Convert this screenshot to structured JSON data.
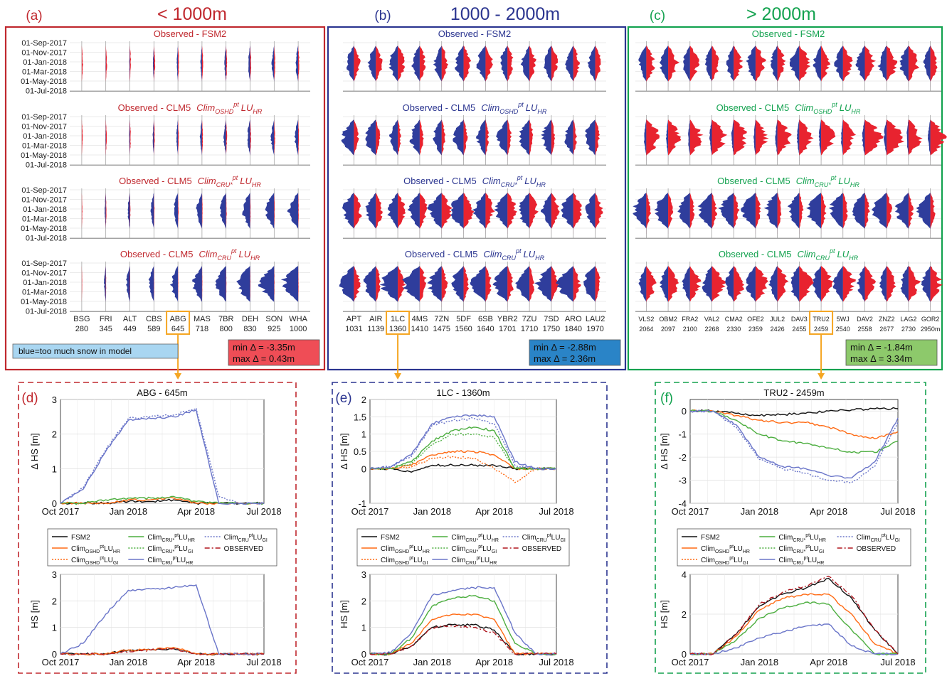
{
  "palette": {
    "red": "#e8232f",
    "blue": "#2f3d9c",
    "green": "#1ea64a",
    "orange": "#f5a623",
    "dark_red": "#c0282e",
    "navy": "#2b3590",
    "sea_green": "#13a24f",
    "fsm2": "#111111",
    "clm_osh": "#ff6a13",
    "clm_crustar": "#4cae3f",
    "clm_cru": "#6a75c9",
    "observed": "#b0171f"
  },
  "panels": [
    {
      "label": "(a)",
      "heading": "< 1000m",
      "subtitles": [
        "Observed - FSM2",
        "Observed - CLM5",
        "Observed - CLM5",
        "Observed - CLM5"
      ],
      "subtitle_clim": [
        "",
        "Clim",
        "Clim",
        "Clim"
      ],
      "subtitle_sub": [
        "",
        "OSHD",
        "CRU*",
        "CRU"
      ],
      "subtitle_sup": [
        "",
        "pt",
        "pt",
        "pt"
      ],
      "subtitle_lu": [
        "",
        "LU",
        "LU",
        "LU"
      ],
      "subtitle_lu_sub": [
        "",
        "HR",
        "HR",
        "HR"
      ],
      "date_ticks": [
        "01-Sep-2017",
        "01-Nov-2017",
        "01-Jan-2018",
        "01-Mar-2018",
        "01-May-2018",
        "01-Jul-2018"
      ],
      "stations": [
        "BSG",
        "FRI",
        "ALT",
        "CBS",
        "ABG",
        "MAS",
        "7BR",
        "DEH",
        "SON",
        "WHA"
      ],
      "elevations": [
        "280",
        "345",
        "449",
        "589",
        "645",
        "718",
        "800",
        "830",
        "925",
        "1000"
      ],
      "highlight_index": 4,
      "note": "blue=too much snow in model",
      "min_label": "min Δ = -3.35m",
      "max_label": "max Δ = 0.43m"
    },
    {
      "label": "(b)",
      "heading": "1000 - 2000m",
      "subtitles": [
        "Observed - FSM2",
        "Observed - CLM5",
        "Observed - CLM5",
        "Observed - CLM5"
      ],
      "subtitle_clim": [
        "",
        "Clim",
        "Clim",
        "Clim"
      ],
      "subtitle_sub": [
        "",
        "OSHD",
        "CRU*",
        "CRU"
      ],
      "subtitle_sup": [
        "",
        "pt",
        "pt",
        "pt"
      ],
      "subtitle_lu": [
        "",
        "LU",
        "LU",
        "LU"
      ],
      "subtitle_lu_sub": [
        "",
        "HR",
        "HR",
        "HR"
      ],
      "stations": [
        "APT",
        "AIR",
        "1LC",
        "4MS",
        "7ZN",
        "5DF",
        "6SB",
        "YBR2",
        "7ZU",
        "7SD",
        "ARO",
        "LAU2"
      ],
      "elevations": [
        "1031",
        "1139",
        "1360",
        "1410",
        "1475",
        "1560",
        "1640",
        "1701",
        "1710",
        "1750",
        "1840",
        "1970"
      ],
      "highlight_index": 2,
      "min_label": "min Δ = -2.88m",
      "max_label": "max Δ = 2.36m"
    },
    {
      "label": "(c)",
      "heading": "> 2000m",
      "subtitles": [
        "Observed - FSM2",
        "Observed - CLM5",
        "Observed - CLM5",
        "Observed - CLM5"
      ],
      "subtitle_clim": [
        "",
        "Clim",
        "Clim",
        "Clim"
      ],
      "subtitle_sub": [
        "",
        "OSHD",
        "CRU*",
        "CRU"
      ],
      "subtitle_sup": [
        "",
        "pt",
        "pt",
        "pt"
      ],
      "subtitle_lu": [
        "",
        "LU",
        "LU",
        "LU"
      ],
      "subtitle_lu_sub": [
        "",
        "HR",
        "HR",
        "HR"
      ],
      "stations": [
        "VLS2",
        "OBM2",
        "FRA2",
        "VAL2",
        "CMA2",
        "OFE2",
        "JUL2",
        "DAV3",
        "TRU2",
        "5WJ",
        "DAV2",
        "ZNZ2",
        "LAG2",
        "GOR2"
      ],
      "elevations": [
        "2064",
        "2097",
        "2100",
        "2268",
        "2330",
        "2359",
        "2426",
        "2455",
        "2459",
        "2540",
        "2558",
        "2677",
        "2730",
        "2950m"
      ],
      "highlight_index": 8,
      "min_label": "min Δ = -1.84m",
      "max_label": "max Δ = 3.34m"
    }
  ],
  "details": [
    {
      "label": "(d)",
      "title": "ABG - 645m",
      "dhs_ylabel": "Δ HS [m]",
      "hs_ylabel": "HS [m]",
      "dhs_yticks": [
        "0",
        "1",
        "2",
        "3"
      ],
      "hs_yticks": [
        "0",
        "1",
        "2",
        "3"
      ],
      "x_ticks": [
        "Oct 2017",
        "Jan 2018",
        "Apr 2018",
        "Jul 2018"
      ],
      "chart_data": {
        "type": "line",
        "x": [
          "Oct 2017",
          "Nov 2017",
          "Dec 2017",
          "Jan 2018",
          "Feb 2018",
          "Mar 2018",
          "Apr 2018",
          "May 2018",
          "Jun 2018",
          "Jul 2018"
        ],
        "dhs_ylim": [
          0,
          3
        ],
        "hs_ylim": [
          0,
          3
        ],
        "dhs_series": [
          {
            "name": "FSM2",
            "values": [
              0,
              0,
              0,
              0.05,
              0.05,
              0.1,
              0,
              0,
              0,
              0
            ]
          },
          {
            "name": "OSHDpt HR",
            "values": [
              0,
              0,
              0,
              0.1,
              0.1,
              0.15,
              0,
              0,
              0,
              0
            ]
          },
          {
            "name": "CRU*pt HR",
            "values": [
              0,
              0,
              0.1,
              0.15,
              0.15,
              0.2,
              0.05,
              0,
              0,
              0
            ]
          },
          {
            "name": "CRUpt HR",
            "values": [
              0,
              0.4,
              1.5,
              2.4,
              2.45,
              2.5,
              2.7,
              0,
              0,
              0
            ]
          },
          {
            "name": "CRUpt GI",
            "values": [
              0,
              0.45,
              1.55,
              2.45,
              2.5,
              2.55,
              2.75,
              0.2,
              0,
              0
            ]
          }
        ],
        "hs_series": [
          {
            "name": "FSM2",
            "values": [
              0,
              0,
              0,
              0.15,
              0.15,
              0.2,
              0,
              0,
              0,
              0
            ]
          },
          {
            "name": "OSHDpt HR",
            "values": [
              0,
              0,
              0,
              0.15,
              0.15,
              0.25,
              0,
              0,
              0,
              0
            ]
          },
          {
            "name": "CRUpt HR",
            "values": [
              0,
              0.4,
              1.5,
              2.4,
              2.45,
              2.5,
              2.6,
              0,
              0,
              0
            ]
          },
          {
            "name": "OBSERVED",
            "values": [
              0,
              0,
              0,
              0.1,
              0.15,
              0.2,
              0,
              0,
              0,
              0
            ]
          }
        ]
      }
    },
    {
      "label": "(e)",
      "title": "1LC - 1360m",
      "dhs_ylabel": "Δ HS [m]",
      "hs_ylabel": "HS [m]",
      "dhs_yticks": [
        "-1",
        "0",
        "0.5",
        "1",
        "1.5",
        "2"
      ],
      "hs_yticks": [
        "0",
        "1",
        "2",
        "3"
      ],
      "x_ticks": [
        "Oct 2017",
        "Jan 2018",
        "Apr 2018",
        "Jul 2018"
      ],
      "chart_data": {
        "type": "line",
        "x": [
          "Oct 2017",
          "Nov 2017",
          "Dec 2017",
          "Jan 2018",
          "Feb 2018",
          "Mar 2018",
          "Apr 2018",
          "May 2018",
          "Jun 2018",
          "Jul 2018"
        ],
        "dhs_ylim": [
          -1,
          2
        ],
        "hs_ylim": [
          0,
          3
        ],
        "dhs_series": [
          {
            "name": "FSM2",
            "values": [
              0,
              0,
              -0.1,
              0.1,
              0.1,
              0.1,
              0.1,
              0,
              0,
              0
            ]
          },
          {
            "name": "OSHDpt HR",
            "values": [
              0,
              0,
              0.1,
              0.4,
              0.5,
              0.5,
              0.4,
              0,
              0,
              0
            ]
          },
          {
            "name": "OSHDpt GI",
            "values": [
              0,
              0,
              0.05,
              0.3,
              0.35,
              0.3,
              0,
              -0.4,
              0,
              0
            ]
          },
          {
            "name": "CRU*pt HR",
            "values": [
              0,
              0,
              0.2,
              0.8,
              1.1,
              1.2,
              1.1,
              0,
              0,
              0
            ]
          },
          {
            "name": "CRU*pt GI",
            "values": [
              0,
              0,
              0.15,
              0.7,
              1.0,
              1.0,
              0.9,
              0,
              0,
              0
            ]
          },
          {
            "name": "CRUpt HR",
            "values": [
              0,
              0.05,
              0.4,
              1.3,
              1.5,
              1.55,
              1.5,
              0.2,
              0,
              0
            ]
          },
          {
            "name": "CRUpt GI",
            "values": [
              0,
              0.05,
              0.35,
              1.25,
              1.4,
              1.45,
              1.3,
              0.1,
              0,
              0
            ]
          }
        ],
        "hs_series": [
          {
            "name": "FSM2",
            "values": [
              0,
              0,
              0.3,
              1.0,
              1.1,
              1.1,
              0.9,
              0,
              0,
              0
            ]
          },
          {
            "name": "OSHDpt HR",
            "values": [
              0,
              0,
              0.4,
              1.3,
              1.5,
              1.5,
              1.3,
              0,
              0,
              0
            ]
          },
          {
            "name": "CRU*pt HR",
            "values": [
              0,
              0,
              0.6,
              1.8,
              2.1,
              2.2,
              2.0,
              0.4,
              0,
              0
            ]
          },
          {
            "name": "CRUpt HR",
            "values": [
              0,
              0.05,
              0.8,
              2.2,
              2.4,
              2.5,
              2.5,
              0.8,
              0,
              0
            ]
          },
          {
            "name": "OBSERVED",
            "values": [
              0,
              0,
              0.3,
              1.0,
              1.05,
              1.0,
              0.8,
              0,
              0,
              0
            ]
          }
        ]
      }
    },
    {
      "label": "(f)",
      "title": "TRU2 - 2459m",
      "dhs_ylabel": "Δ HS [m]",
      "hs_ylabel": "HS [m]",
      "dhs_yticks": [
        "-4",
        "-3",
        "-2",
        "-1",
        "0"
      ],
      "hs_yticks": [
        "0",
        "2",
        "4"
      ],
      "x_ticks": [
        "Oct 2017",
        "Jan 2018",
        "Apr 2018",
        "Jul 2018"
      ],
      "chart_data": {
        "type": "line",
        "x": [
          "Oct 2017",
          "Nov 2017",
          "Dec 2017",
          "Jan 2018",
          "Feb 2018",
          "Mar 2018",
          "Apr 2018",
          "May 2018",
          "Jun 2018",
          "Jul 2018"
        ],
        "dhs_ylim": [
          -4,
          0.5
        ],
        "hs_ylim": [
          0,
          4
        ],
        "dhs_series": [
          {
            "name": "FSM2",
            "values": [
              0,
              0,
              -0.1,
              -0.2,
              -0.15,
              -0.1,
              0,
              0.05,
              0.1,
              0.1
            ]
          },
          {
            "name": "OSHDpt HR",
            "values": [
              0,
              0,
              -0.2,
              -0.4,
              -0.5,
              -0.5,
              -0.7,
              -1.0,
              -1.2,
              -0.9
            ]
          },
          {
            "name": "CRU*pt HR",
            "values": [
              0,
              0,
              -0.4,
              -1.0,
              -1.3,
              -1.4,
              -1.6,
              -1.8,
              -1.8,
              -1.3
            ]
          },
          {
            "name": "CRUpt HR",
            "values": [
              0,
              0,
              -0.6,
              -2.0,
              -2.4,
              -2.5,
              -2.8,
              -2.9,
              -2.2,
              -0.3
            ]
          },
          {
            "name": "CRUpt GI",
            "values": [
              0,
              0,
              -0.7,
              -2.1,
              -2.5,
              -2.7,
              -3.0,
              -3.1,
              -2.4,
              -0.5
            ]
          }
        ],
        "hs_series": [
          {
            "name": "FSM2",
            "values": [
              0,
              0,
              1.0,
              2.4,
              3.0,
              3.3,
              3.8,
              2.8,
              1.2,
              0
            ]
          },
          {
            "name": "OSHDpt HR",
            "values": [
              0,
              0,
              0.9,
              2.2,
              2.8,
              3.0,
              3.0,
              2.0,
              0.5,
              0
            ]
          },
          {
            "name": "CRU*pt HR",
            "values": [
              0,
              0,
              0.7,
              1.8,
              2.3,
              2.6,
              2.5,
              1.2,
              0,
              0
            ]
          },
          {
            "name": "CRUpt HR",
            "values": [
              0,
              0,
              0.3,
              0.8,
              1.1,
              1.4,
              1.5,
              0.4,
              0,
              0
            ]
          },
          {
            "name": "OBSERVED",
            "values": [
              0,
              0,
              1.0,
              2.5,
              3.1,
              3.4,
              3.9,
              2.9,
              1.2,
              0
            ]
          }
        ]
      }
    }
  ],
  "legend": {
    "fsm2": "FSM2",
    "osh_hr_base": "Clim",
    "osh_hr_sub": "OSHD",
    "osh_hr_sup": "pt",
    "osh_hr_lu": "LU",
    "osh_hr_lusub": "HR",
    "osh_gi_lusub": "GI",
    "crustar_sub": "CRU*",
    "cru_sub": "CRU",
    "observed": "OBSERVED"
  }
}
